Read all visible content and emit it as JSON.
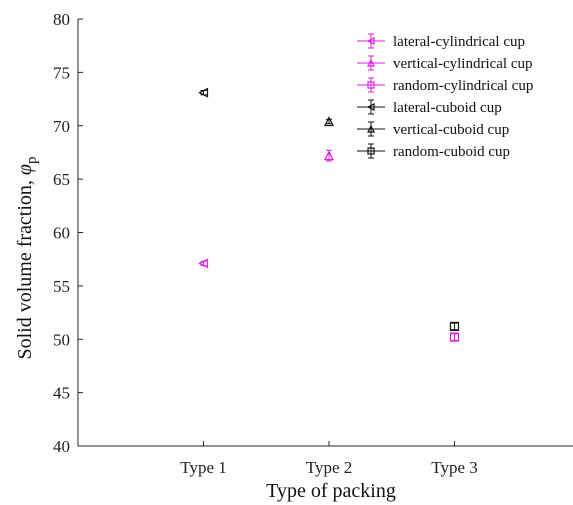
{
  "chart_data": {
    "type": "scatter",
    "xlabel": "Type of packing",
    "ylabel": "Solid volume fraction, ",
    "ylabel_symbol": "φ",
    "ylabel_subscript": "p",
    "categories": [
      "Type 1",
      "Type 2",
      "Type 3"
    ],
    "xlim": [
      0,
      4
    ],
    "ylim": [
      40,
      80
    ],
    "yticks": [
      40,
      45,
      50,
      55,
      60,
      65,
      70,
      75,
      80
    ],
    "grid": false,
    "legend_position": "top-right",
    "colors": {
      "cylindrical": "#e11ee1",
      "cuboid": "#111111"
    },
    "series": [
      {
        "name": "lateral-cylindrical cup",
        "marker": "triangle-left",
        "color": "#e11ee1",
        "points": [
          {
            "x": "Type 1",
            "y": 57.1,
            "err": 0.2
          }
        ]
      },
      {
        "name": "vertical-cylindrical cup",
        "marker": "triangle-up",
        "color": "#e11ee1",
        "points": [
          {
            "x": "Type 2",
            "y": 67.2,
            "err": 0.5
          }
        ]
      },
      {
        "name": "random-cylindrical cup",
        "marker": "square",
        "color": "#e11ee1",
        "points": [
          {
            "x": "Type 3",
            "y": 50.2,
            "err": 0.3
          }
        ]
      },
      {
        "name": "lateral-cuboid cup",
        "marker": "triangle-left",
        "color": "#111111",
        "points": [
          {
            "x": "Type 1",
            "y": 73.1,
            "err": 0.2
          }
        ]
      },
      {
        "name": "vertical-cuboid cup",
        "marker": "triangle-up",
        "color": "#111111",
        "points": [
          {
            "x": "Type 2",
            "y": 70.4,
            "err": 0.2
          }
        ]
      },
      {
        "name": "random-cuboid cup",
        "marker": "square",
        "color": "#111111",
        "points": [
          {
            "x": "Type 3",
            "y": 51.2,
            "err": 0.3
          }
        ]
      }
    ]
  }
}
